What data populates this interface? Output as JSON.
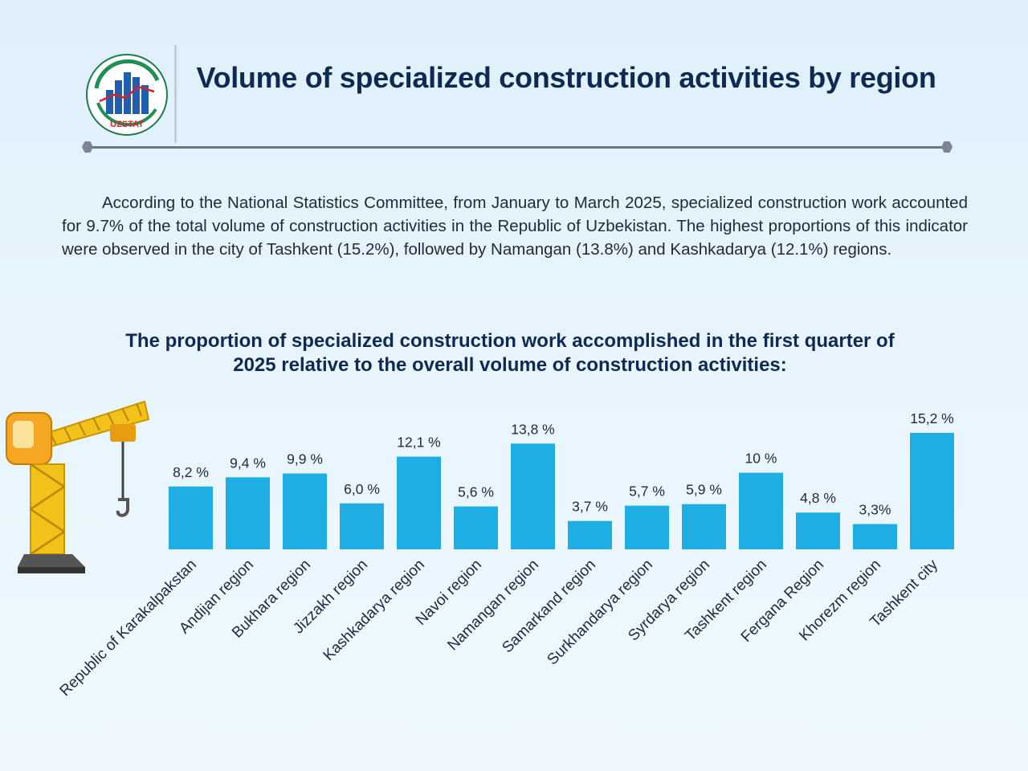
{
  "header": {
    "title": "Volume of specialized construction activities by region",
    "logo_text": "UZSTAT"
  },
  "intro": {
    "paragraph": "According to the National Statistics Committee, from January to March 2025, specialized construction work accounted for 9.7% of the total volume of construction activities in the Republic of Uzbekistan. The highest proportions of this indicator were observed in the city of Tashkent (15.2%), followed by Namangan (13.8%) and Kashkadarya (12.1%) regions."
  },
  "chart_data": {
    "type": "bar",
    "title": "The proportion of specialized construction work accomplished in the first quarter of 2025 relative to the overall volume of construction activities:",
    "xlabel": "",
    "ylabel": "",
    "ylim": [
      0,
      15.2
    ],
    "categories": [
      "Republic of Karakalpakstan",
      "Andijan region",
      "Bukhara region",
      "Jizzakh region",
      "Kashkadarya region",
      "Navoi region",
      "Namangan region",
      "Samarkand region",
      "Surkhandarya region",
      "Syrdarya region",
      "Tashkent region",
      "Fergana Region",
      "Khorezm region",
      "Tashkent city"
    ],
    "values": [
      8.2,
      9.4,
      9.9,
      6.0,
      12.1,
      5.6,
      13.8,
      3.7,
      5.7,
      5.9,
      10.0,
      4.8,
      3.3,
      15.2
    ],
    "value_labels": [
      "8,2 %",
      "9,4 %",
      "9,9 %",
      "6,0 %",
      "12,1 %",
      "5,6 %",
      "13,8 %",
      "3,7 %",
      "5,7 %",
      "5,9 %",
      "10 %",
      "4,8 %",
      "3,3%",
      "15,2 %"
    ],
    "colors": {
      "bar": "#1faee3"
    }
  },
  "colors": {
    "title": "#0f2a52",
    "background": "#e4f2fc",
    "accent": "#1faee3"
  }
}
